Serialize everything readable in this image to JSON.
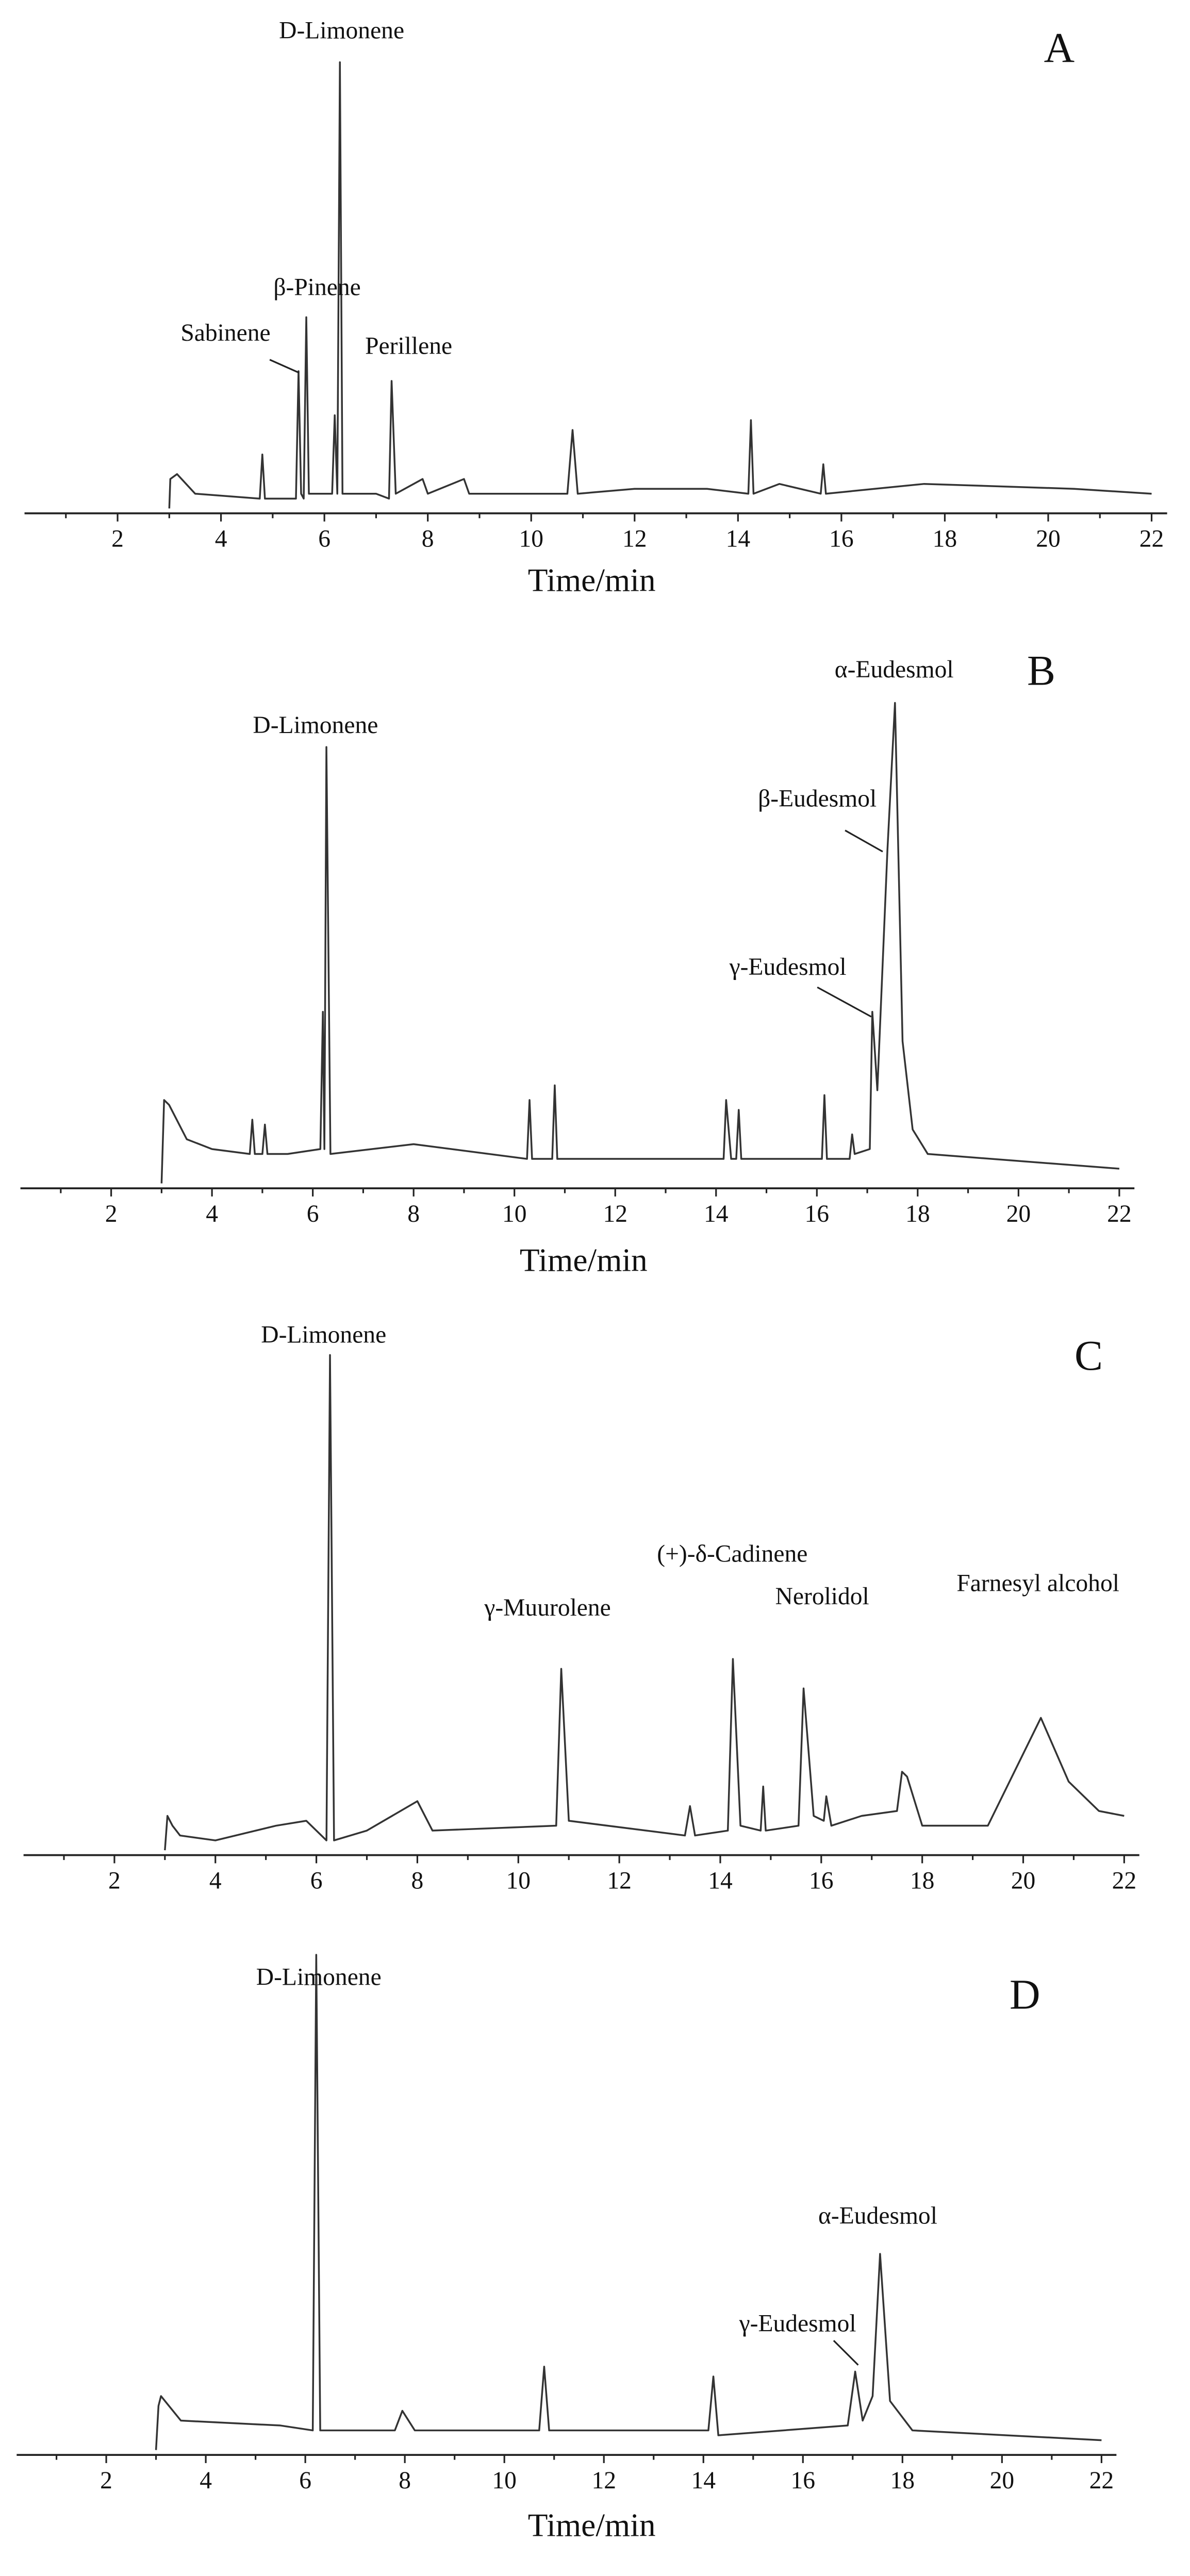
{
  "chart_data": [
    {
      "type": "line",
      "title": "A",
      "xlabel": "Time/min",
      "color": "#333333",
      "annotations": [
        "D-Limonene",
        "β-Pinene",
        "Sabinene",
        "Perillene"
      ],
      "x": [
        3.0,
        3.02,
        3.15,
        3.5,
        4.75,
        4.8,
        4.85,
        5.45,
        5.5,
        5.55,
        5.6,
        5.65,
        5.7,
        6.15,
        6.2,
        6.25,
        6.3,
        6.35,
        7.0,
        7.25,
        7.3,
        7.38,
        7.9,
        8.0,
        8.7,
        8.8,
        10.7,
        10.8,
        10.9,
        12.0,
        13.4,
        14.2,
        14.25,
        14.3,
        14.8,
        15.6,
        15.65,
        15.7,
        17.6,
        20.5,
        22.0
      ],
      "values": [
        1,
        7,
        8,
        4,
        3,
        12,
        3,
        3,
        29,
        4,
        3,
        40,
        4,
        4,
        20,
        4,
        92,
        4,
        4,
        3,
        27,
        4,
        7,
        4,
        7,
        4,
        4,
        17,
        4,
        5,
        5,
        4,
        19,
        4,
        6,
        4,
        10,
        4,
        6,
        5,
        4
      ],
      "xlim": [
        0.2,
        22.3
      ],
      "xticks": [
        2,
        4,
        6,
        8,
        10,
        12,
        14,
        16,
        18,
        20,
        22
      ],
      "xminorticks": [
        1,
        3,
        5,
        7,
        9,
        11,
        13,
        15,
        17,
        19,
        21
      ],
      "ylim": [
        0,
        105
      ]
    },
    {
      "type": "line",
      "title": "B",
      "xlabel": "Time/min",
      "color": "#333333",
      "annotations": [
        "D-Limonene",
        "α-Eudesmol",
        "β-Eudesmol",
        "γ-Eudesmol"
      ],
      "x": [
        3.0,
        3.05,
        3.15,
        3.5,
        4.0,
        4.75,
        4.8,
        4.85,
        5.0,
        5.05,
        5.1,
        5.5,
        6.15,
        6.2,
        6.23,
        6.27,
        6.35,
        8.0,
        10.25,
        10.3,
        10.35,
        10.75,
        10.8,
        10.85,
        14.15,
        14.2,
        14.3,
        14.4,
        14.45,
        14.5,
        16.1,
        16.15,
        16.2,
        16.65,
        16.7,
        16.75,
        17.05,
        17.1,
        17.2,
        17.4,
        17.55,
        17.7,
        17.9,
        18.2,
        22.0
      ],
      "values": [
        1,
        18,
        17,
        10,
        8,
        7,
        14,
        7,
        7,
        13,
        7,
        7,
        8,
        36,
        8,
        90,
        7,
        9,
        6,
        18,
        6,
        6,
        21,
        6,
        6,
        18,
        6,
        6,
        16,
        6,
        6,
        19,
        6,
        6,
        11,
        7,
        8,
        36,
        20,
        69,
        99,
        30,
        12,
        7,
        4
      ],
      "xlim": [
        0.2,
        22.3
      ],
      "xticks": [
        2,
        4,
        6,
        8,
        10,
        12,
        14,
        16,
        18,
        20,
        22
      ],
      "xminorticks": [
        1,
        3,
        5,
        7,
        9,
        11,
        13,
        15,
        17,
        19,
        21
      ],
      "ylim": [
        0,
        105
      ]
    },
    {
      "type": "line",
      "title": "C",
      "color": "#333333",
      "annotations": [
        "D-Limonene",
        "γ-Muurolene",
        "(+)-δ-Cadinene",
        "Nerolidol",
        "Farnesyl alcohol"
      ],
      "x": [
        3.0,
        3.05,
        3.15,
        3.3,
        4.0,
        5.2,
        5.8,
        6.2,
        6.27,
        6.35,
        7.0,
        8.0,
        8.3,
        10.75,
        10.85,
        11.0,
        13.3,
        13.4,
        13.5,
        14.15,
        14.25,
        14.4,
        14.8,
        14.85,
        14.9,
        15.55,
        15.65,
        15.85,
        16.05,
        16.1,
        16.2,
        16.8,
        17.5,
        17.6,
        17.7,
        18.0,
        19.3,
        20.35,
        20.9,
        21.5,
        22.0
      ],
      "values": [
        1,
        8,
        6,
        4,
        3,
        6,
        7,
        3,
        102,
        3,
        5,
        11,
        5,
        6,
        38,
        7,
        4,
        10,
        4,
        5,
        40,
        6,
        5,
        14,
        5,
        6,
        34,
        8,
        7,
        12,
        6,
        8,
        9,
        17,
        16,
        6,
        6,
        28,
        15,
        9,
        8
      ],
      "xlim": [
        0.2,
        22.3
      ],
      "xticks": [
        2,
        4,
        6,
        8,
        10,
        12,
        14,
        16,
        18,
        20,
        22
      ],
      "xminorticks": [
        1,
        3,
        5,
        7,
        9,
        11,
        13,
        15,
        17,
        19,
        21
      ],
      "ylim": [
        0,
        105
      ]
    },
    {
      "type": "line",
      "title": "D",
      "xlabel": "Time/min",
      "color": "#333333",
      "annotations": [
        "D-Limonene",
        "α-Eudesmol",
        "γ-Eudesmol"
      ],
      "x": [
        3.0,
        3.05,
        3.1,
        3.5,
        5.5,
        6.15,
        6.22,
        6.3,
        7.8,
        7.95,
        8.2,
        10.7,
        10.8,
        10.9,
        14.1,
        14.2,
        14.3,
        16.9,
        17.05,
        17.2,
        17.4,
        17.55,
        17.75,
        18.2,
        22.0
      ],
      "values": [
        1,
        10,
        12,
        7,
        6,
        5,
        102,
        5,
        5,
        9,
        5,
        5,
        18,
        5,
        5,
        16,
        4,
        6,
        17,
        7,
        12,
        41,
        11,
        5,
        3
      ],
      "xlim": [
        0.2,
        22.3
      ],
      "xticks": [
        2,
        4,
        6,
        8,
        10,
        12,
        14,
        16,
        18,
        20,
        22
      ],
      "xminorticks": [
        1,
        3,
        5,
        7,
        9,
        11,
        13,
        15,
        17,
        19,
        21
      ],
      "ylim": [
        0,
        105
      ]
    }
  ]
}
